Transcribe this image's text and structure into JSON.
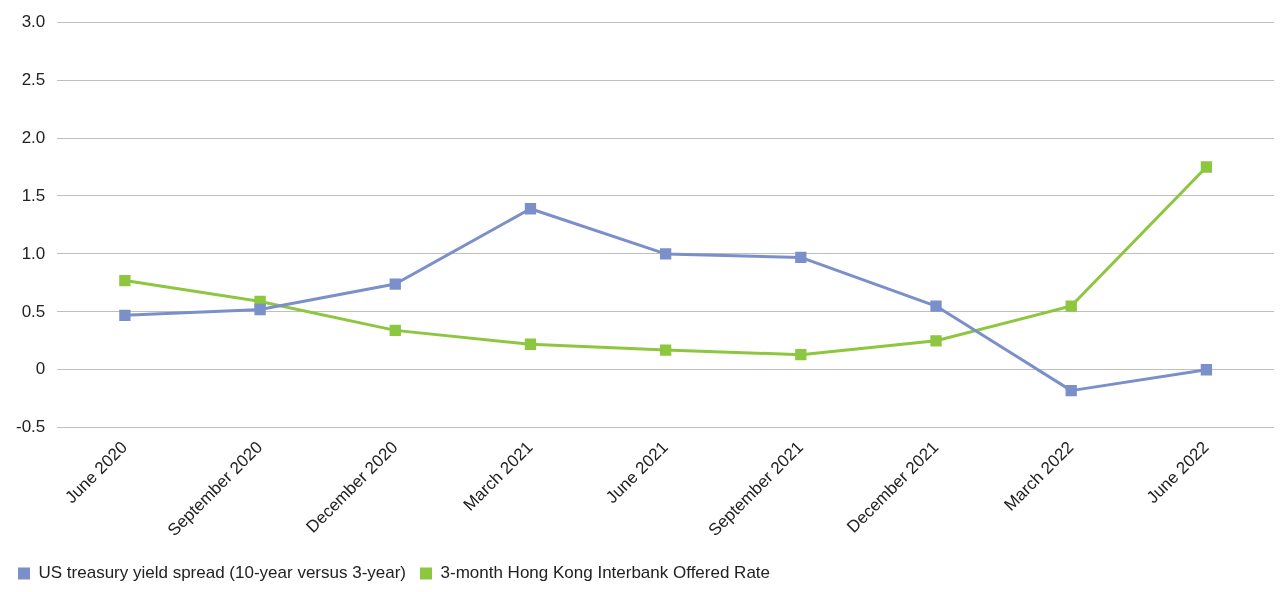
{
  "chart_data": {
    "type": "line",
    "categories": [
      "June 2020",
      "September 2020",
      "December 2020",
      "March 2021",
      "June 2021",
      "September 2021",
      "December 2021",
      "March 2022",
      "June 2022"
    ],
    "series": [
      {
        "name": "US treasury yield spread (10-year versus 3-year)",
        "color": "#7b8fca",
        "values": [
          0.47,
          0.52,
          0.74,
          1.39,
          1.0,
          0.97,
          0.55,
          -0.18,
          0.0
        ]
      },
      {
        "name": "3-month Hong Kong Interbank Offered Rate",
        "color": "#8dc63f",
        "values": [
          0.77,
          0.59,
          0.34,
          0.22,
          0.17,
          0.13,
          0.25,
          0.55,
          1.75
        ]
      }
    ],
    "ylim": [
      -0.5,
      3.0
    ],
    "yticks": [
      -0.5,
      0,
      0.5,
      {
        "value": 1,
        "label": "1.0"
      },
      1.5,
      {
        "value": 2,
        "label": "2.0"
      },
      2.5,
      {
        "value": 3,
        "label": "3.0"
      }
    ],
    "grid": "y",
    "legend": "bottom left",
    "marker": "square",
    "line_style": "solid"
  }
}
